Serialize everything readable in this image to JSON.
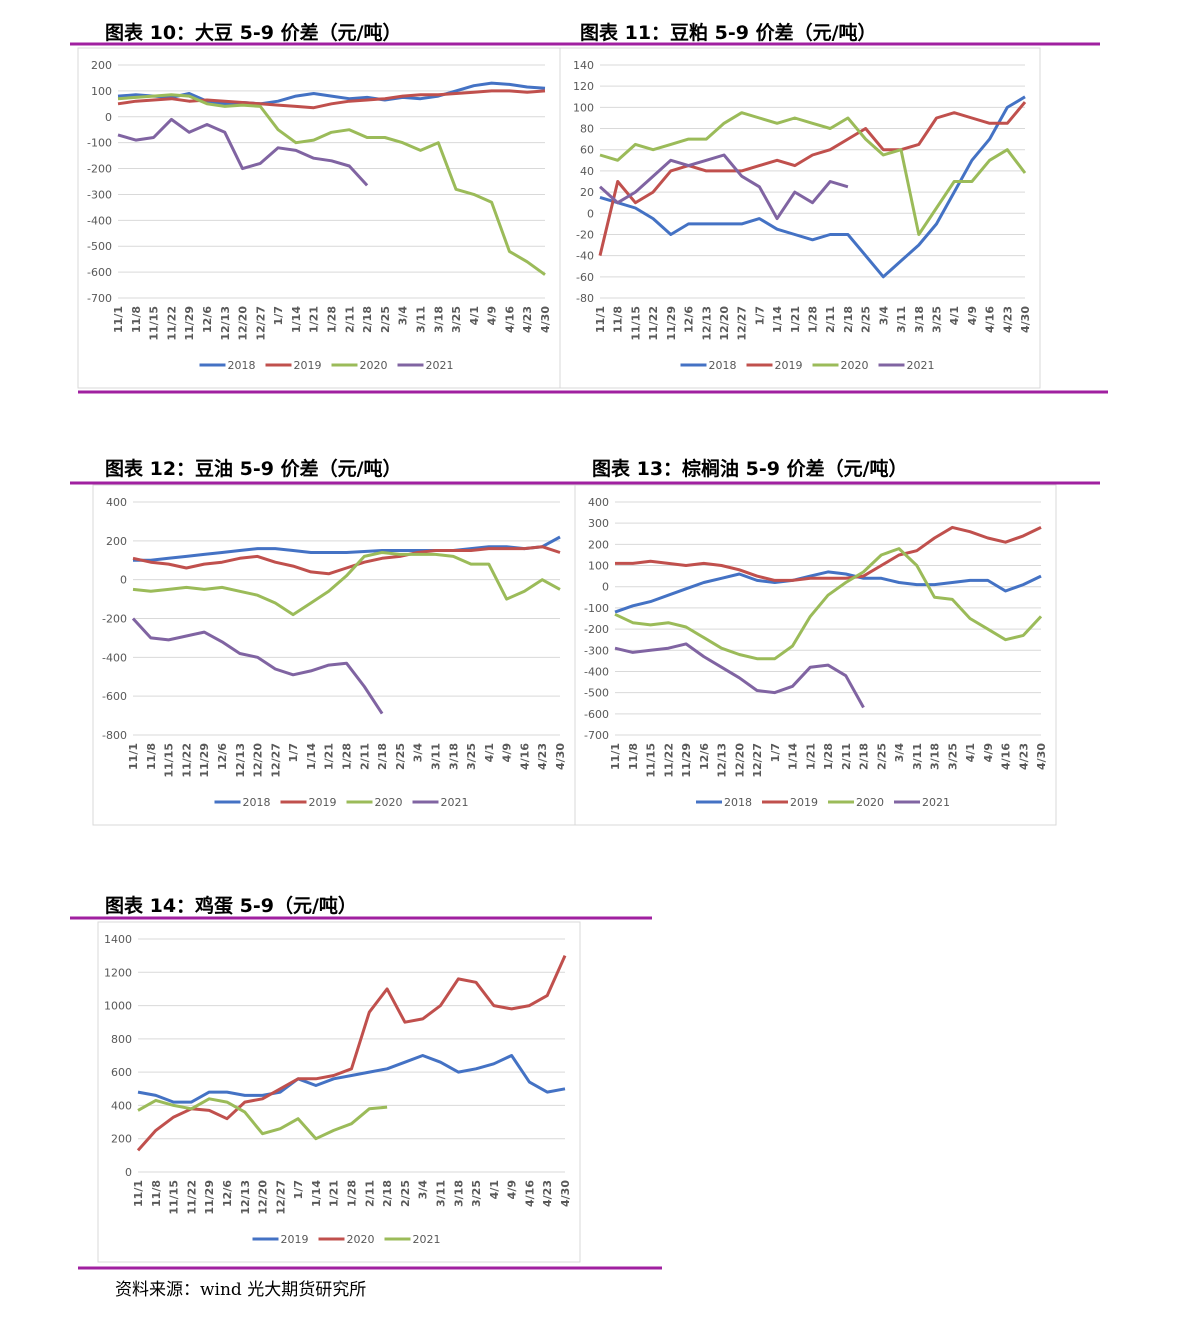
{
  "chart_data": [
    {
      "type": "line",
      "title": "图表 10：大豆 5-9 价差（元/吨）",
      "categories": [
        "11/1",
        "11/8",
        "11/15",
        "11/22",
        "11/29",
        "12/6",
        "12/13",
        "12/20",
        "12/27",
        "1/7",
        "1/14",
        "1/21",
        "1/28",
        "2/11",
        "2/18",
        "2/25",
        "3/4",
        "3/11",
        "3/18",
        "3/25",
        "4/1",
        "4/9",
        "4/16",
        "4/23",
        "4/30"
      ],
      "ylim": [
        -700,
        200
      ],
      "yticks": [
        -700,
        -600,
        -500,
        -400,
        -300,
        -200,
        -100,
        0,
        100,
        200
      ],
      "grid": true,
      "series": [
        {
          "name": "2018",
          "color": "#4472c4",
          "values": [
            80,
            85,
            80,
            75,
            90,
            60,
            50,
            55,
            50,
            60,
            80,
            90,
            80,
            70,
            75,
            65,
            75,
            70,
            80,
            100,
            120,
            130,
            125,
            115,
            110
          ]
        },
        {
          "name": "2019",
          "color": "#c0504d",
          "values": [
            50,
            60,
            65,
            70,
            60,
            65,
            60,
            55,
            50,
            45,
            40,
            35,
            50,
            60,
            65,
            70,
            80,
            85,
            85,
            90,
            95,
            100,
            100,
            95,
            100
          ]
        },
        {
          "name": "2020",
          "color": "#9bbb59",
          "values": [
            70,
            75,
            80,
            85,
            80,
            50,
            40,
            45,
            40,
            -50,
            -100,
            -90,
            -60,
            -50,
            -80,
            -80,
            -100,
            -130,
            -100,
            -280,
            -300,
            -330,
            -520,
            -560,
            -610
          ]
        },
        {
          "name": "2021",
          "color": "#8064a2",
          "values": [
            -70,
            -90,
            -80,
            -10,
            -60,
            -30,
            -60,
            -200,
            -180,
            -120,
            -130,
            -160,
            -170,
            -190,
            -265,
            null,
            null,
            null,
            null,
            null,
            null,
            null,
            null,
            null,
            null
          ]
        }
      ]
    },
    {
      "type": "line",
      "title": "图表 11：豆粕 5-9 价差（元/吨）",
      "categories": [
        "11/1",
        "11/8",
        "11/15",
        "11/22",
        "11/29",
        "12/6",
        "12/13",
        "12/20",
        "12/27",
        "1/7",
        "1/14",
        "1/21",
        "1/28",
        "2/11",
        "2/18",
        "2/25",
        "3/4",
        "3/11",
        "3/18",
        "3/25",
        "4/1",
        "4/9",
        "4/16",
        "4/23",
        "4/30"
      ],
      "ylim": [
        -80,
        140
      ],
      "yticks": [
        -80,
        -60,
        -40,
        -20,
        0,
        20,
        40,
        60,
        80,
        100,
        120,
        140
      ],
      "grid": true,
      "series": [
        {
          "name": "2018",
          "color": "#4472c4",
          "values": [
            15,
            10,
            5,
            -5,
            -20,
            -10,
            -10,
            -10,
            -10,
            -5,
            -15,
            -20,
            -25,
            -20,
            -20,
            -40,
            -60,
            -45,
            -30,
            -10,
            20,
            50,
            70,
            100,
            110
          ]
        },
        {
          "name": "2019",
          "color": "#c0504d",
          "values": [
            -40,
            30,
            10,
            20,
            40,
            45,
            40,
            40,
            40,
            45,
            50,
            45,
            55,
            60,
            70,
            80,
            60,
            60,
            65,
            90,
            95,
            90,
            85,
            85,
            105
          ]
        },
        {
          "name": "2020",
          "color": "#9bbb59",
          "values": [
            55,
            50,
            65,
            60,
            65,
            70,
            70,
            85,
            95,
            90,
            85,
            90,
            85,
            80,
            90,
            70,
            55,
            60,
            -20,
            5,
            30,
            30,
            50,
            60,
            38
          ]
        },
        {
          "name": "2021",
          "color": "#8064a2",
          "values": [
            25,
            10,
            20,
            35,
            50,
            45,
            50,
            55,
            35,
            25,
            -5,
            20,
            10,
            30,
            25,
            null,
            null,
            null,
            null,
            null,
            null,
            null,
            null,
            null,
            null
          ]
        }
      ]
    },
    {
      "type": "line",
      "title": "图表 12：豆油 5-9 价差（元/吨）",
      "categories": [
        "11/1",
        "11/8",
        "11/15",
        "11/22",
        "11/29",
        "12/6",
        "12/13",
        "12/20",
        "12/27",
        "1/7",
        "1/14",
        "1/21",
        "1/28",
        "2/11",
        "2/18",
        "2/25",
        "3/4",
        "3/11",
        "3/18",
        "3/25",
        "4/1",
        "4/9",
        "4/16",
        "4/23",
        "4/30"
      ],
      "ylim": [
        -800,
        400
      ],
      "yticks": [
        -800,
        -600,
        -400,
        -200,
        0,
        200,
        400
      ],
      "grid": true,
      "series": [
        {
          "name": "2018",
          "color": "#4472c4",
          "values": [
            100,
            100,
            110,
            120,
            130,
            140,
            150,
            160,
            160,
            150,
            140,
            140,
            140,
            145,
            150,
            150,
            150,
            150,
            150,
            160,
            170,
            170,
            160,
            170,
            220
          ]
        },
        {
          "name": "2019",
          "color": "#c0504d",
          "values": [
            110,
            90,
            80,
            60,
            80,
            90,
            110,
            120,
            90,
            70,
            40,
            30,
            60,
            90,
            110,
            120,
            140,
            150,
            150,
            150,
            160,
            160,
            160,
            170,
            140
          ]
        },
        {
          "name": "2020",
          "color": "#9bbb59",
          "values": [
            -50,
            -60,
            -50,
            -40,
            -50,
            -40,
            -60,
            -80,
            -120,
            -180,
            -120,
            -60,
            20,
            120,
            140,
            130,
            130,
            130,
            120,
            80,
            80,
            -100,
            -60,
            0,
            -50
          ]
        },
        {
          "name": "2021",
          "color": "#8064a2",
          "values": [
            -200,
            -300,
            -310,
            -290,
            -270,
            -320,
            -380,
            -400,
            -460,
            -490,
            -470,
            -440,
            -430,
            -550,
            -690,
            null,
            null,
            null,
            null,
            null,
            null,
            null,
            null,
            null,
            null
          ]
        }
      ]
    },
    {
      "type": "line",
      "title": "图表 13：棕榈油 5-9 价差（元/吨）",
      "categories": [
        "11/1",
        "11/8",
        "11/15",
        "11/22",
        "11/29",
        "12/6",
        "12/13",
        "12/20",
        "12/27",
        "1/7",
        "1/14",
        "1/21",
        "1/28",
        "2/11",
        "2/18",
        "2/25",
        "3/4",
        "3/11",
        "3/18",
        "3/25",
        "4/1",
        "4/9",
        "4/16",
        "4/23",
        "4/30"
      ],
      "ylim": [
        -700,
        400
      ],
      "yticks": [
        -700,
        -600,
        -500,
        -400,
        -300,
        -200,
        -100,
        0,
        100,
        200,
        300,
        400
      ],
      "grid": true,
      "series": [
        {
          "name": "2018",
          "color": "#4472c4",
          "values": [
            -120,
            -90,
            -70,
            -40,
            -10,
            20,
            40,
            60,
            30,
            20,
            30,
            50,
            70,
            60,
            40,
            40,
            20,
            10,
            10,
            20,
            30,
            30,
            -20,
            10,
            50
          ]
        },
        {
          "name": "2019",
          "color": "#c0504d",
          "values": [
            110,
            110,
            120,
            110,
            100,
            110,
            100,
            80,
            50,
            30,
            30,
            40,
            40,
            40,
            50,
            100,
            150,
            170,
            230,
            280,
            260,
            230,
            210,
            240,
            280
          ]
        },
        {
          "name": "2020",
          "color": "#9bbb59",
          "values": [
            -130,
            -170,
            -180,
            -170,
            -190,
            -240,
            -290,
            -320,
            -340,
            -340,
            -280,
            -140,
            -40,
            20,
            70,
            150,
            180,
            100,
            -50,
            -60,
            -150,
            -200,
            -250,
            -230,
            -140
          ]
        },
        {
          "name": "2021",
          "color": "#8064a2",
          "values": [
            -290,
            -310,
            -300,
            -290,
            -270,
            -330,
            -380,
            -430,
            -490,
            -500,
            -470,
            -380,
            -370,
            -420,
            -570,
            null,
            null,
            null,
            null,
            null,
            null,
            null,
            null,
            null,
            null
          ]
        }
      ]
    },
    {
      "type": "line",
      "title": "图表 14：鸡蛋 5-9（元/吨）",
      "categories": [
        "11/1",
        "11/8",
        "11/15",
        "11/22",
        "11/29",
        "12/6",
        "12/13",
        "12/20",
        "12/27",
        "1/7",
        "1/14",
        "1/21",
        "1/28",
        "2/11",
        "2/18",
        "2/25",
        "3/4",
        "3/11",
        "3/18",
        "3/25",
        "4/1",
        "4/9",
        "4/16",
        "4/23",
        "4/30"
      ],
      "ylim": [
        0,
        1400
      ],
      "yticks": [
        0,
        200,
        400,
        600,
        800,
        1000,
        1200,
        1400
      ],
      "grid": true,
      "series": [
        {
          "name": "2019",
          "color": "#4472c4",
          "values": [
            480,
            460,
            420,
            420,
            480,
            480,
            460,
            460,
            480,
            560,
            520,
            560,
            580,
            600,
            620,
            660,
            700,
            660,
            600,
            620,
            650,
            700,
            540,
            480,
            500
          ]
        },
        {
          "name": "2020",
          "color": "#c0504d",
          "values": [
            130,
            250,
            330,
            380,
            370,
            320,
            420,
            440,
            500,
            560,
            560,
            580,
            620,
            960,
            1100,
            900,
            920,
            1000,
            1160,
            1140,
            1000,
            980,
            1000,
            1060,
            1300
          ]
        },
        {
          "name": "2021",
          "color": "#9bbb59",
          "values": [
            370,
            430,
            400,
            380,
            440,
            420,
            360,
            230,
            260,
            320,
            200,
            250,
            290,
            380,
            390,
            null,
            null,
            null,
            null,
            null,
            null,
            null,
            null,
            null,
            null
          ]
        }
      ]
    }
  ],
  "source": "资料来源：wind 光大期货研究所"
}
